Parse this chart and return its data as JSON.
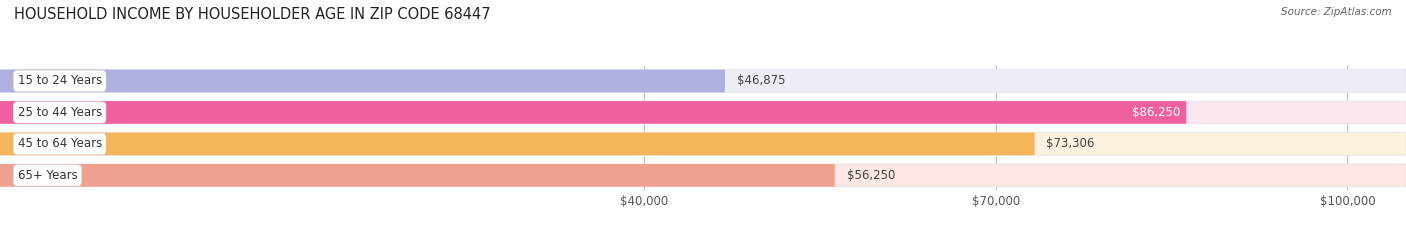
{
  "title": "HOUSEHOLD INCOME BY HOUSEHOLDER AGE IN ZIP CODE 68447",
  "source": "Source: ZipAtlas.com",
  "categories": [
    "15 to 24 Years",
    "25 to 44 Years",
    "45 to 64 Years",
    "65+ Years"
  ],
  "values": [
    46875,
    86250,
    73306,
    56250
  ],
  "bar_colors": [
    "#b0b0e0",
    "#f060a0",
    "#f5b55a",
    "#f0a090"
  ],
  "bg_colors": [
    "#ededf5",
    "#fde8f2",
    "#fdf2e0",
    "#fde8e5"
  ],
  "value_labels": [
    "$46,875",
    "$86,250",
    "$73,306",
    "$56,250"
  ],
  "xmin": -15000,
  "xmax": 105000,
  "xticks": [
    40000,
    70000,
    100000
  ],
  "xtick_labels": [
    "$40,000",
    "$70,000",
    "$100,000"
  ],
  "title_fontsize": 10.5,
  "label_fontsize": 8.5,
  "bar_height": 0.72,
  "figsize": [
    14.06,
    2.33
  ],
  "dpi": 100
}
